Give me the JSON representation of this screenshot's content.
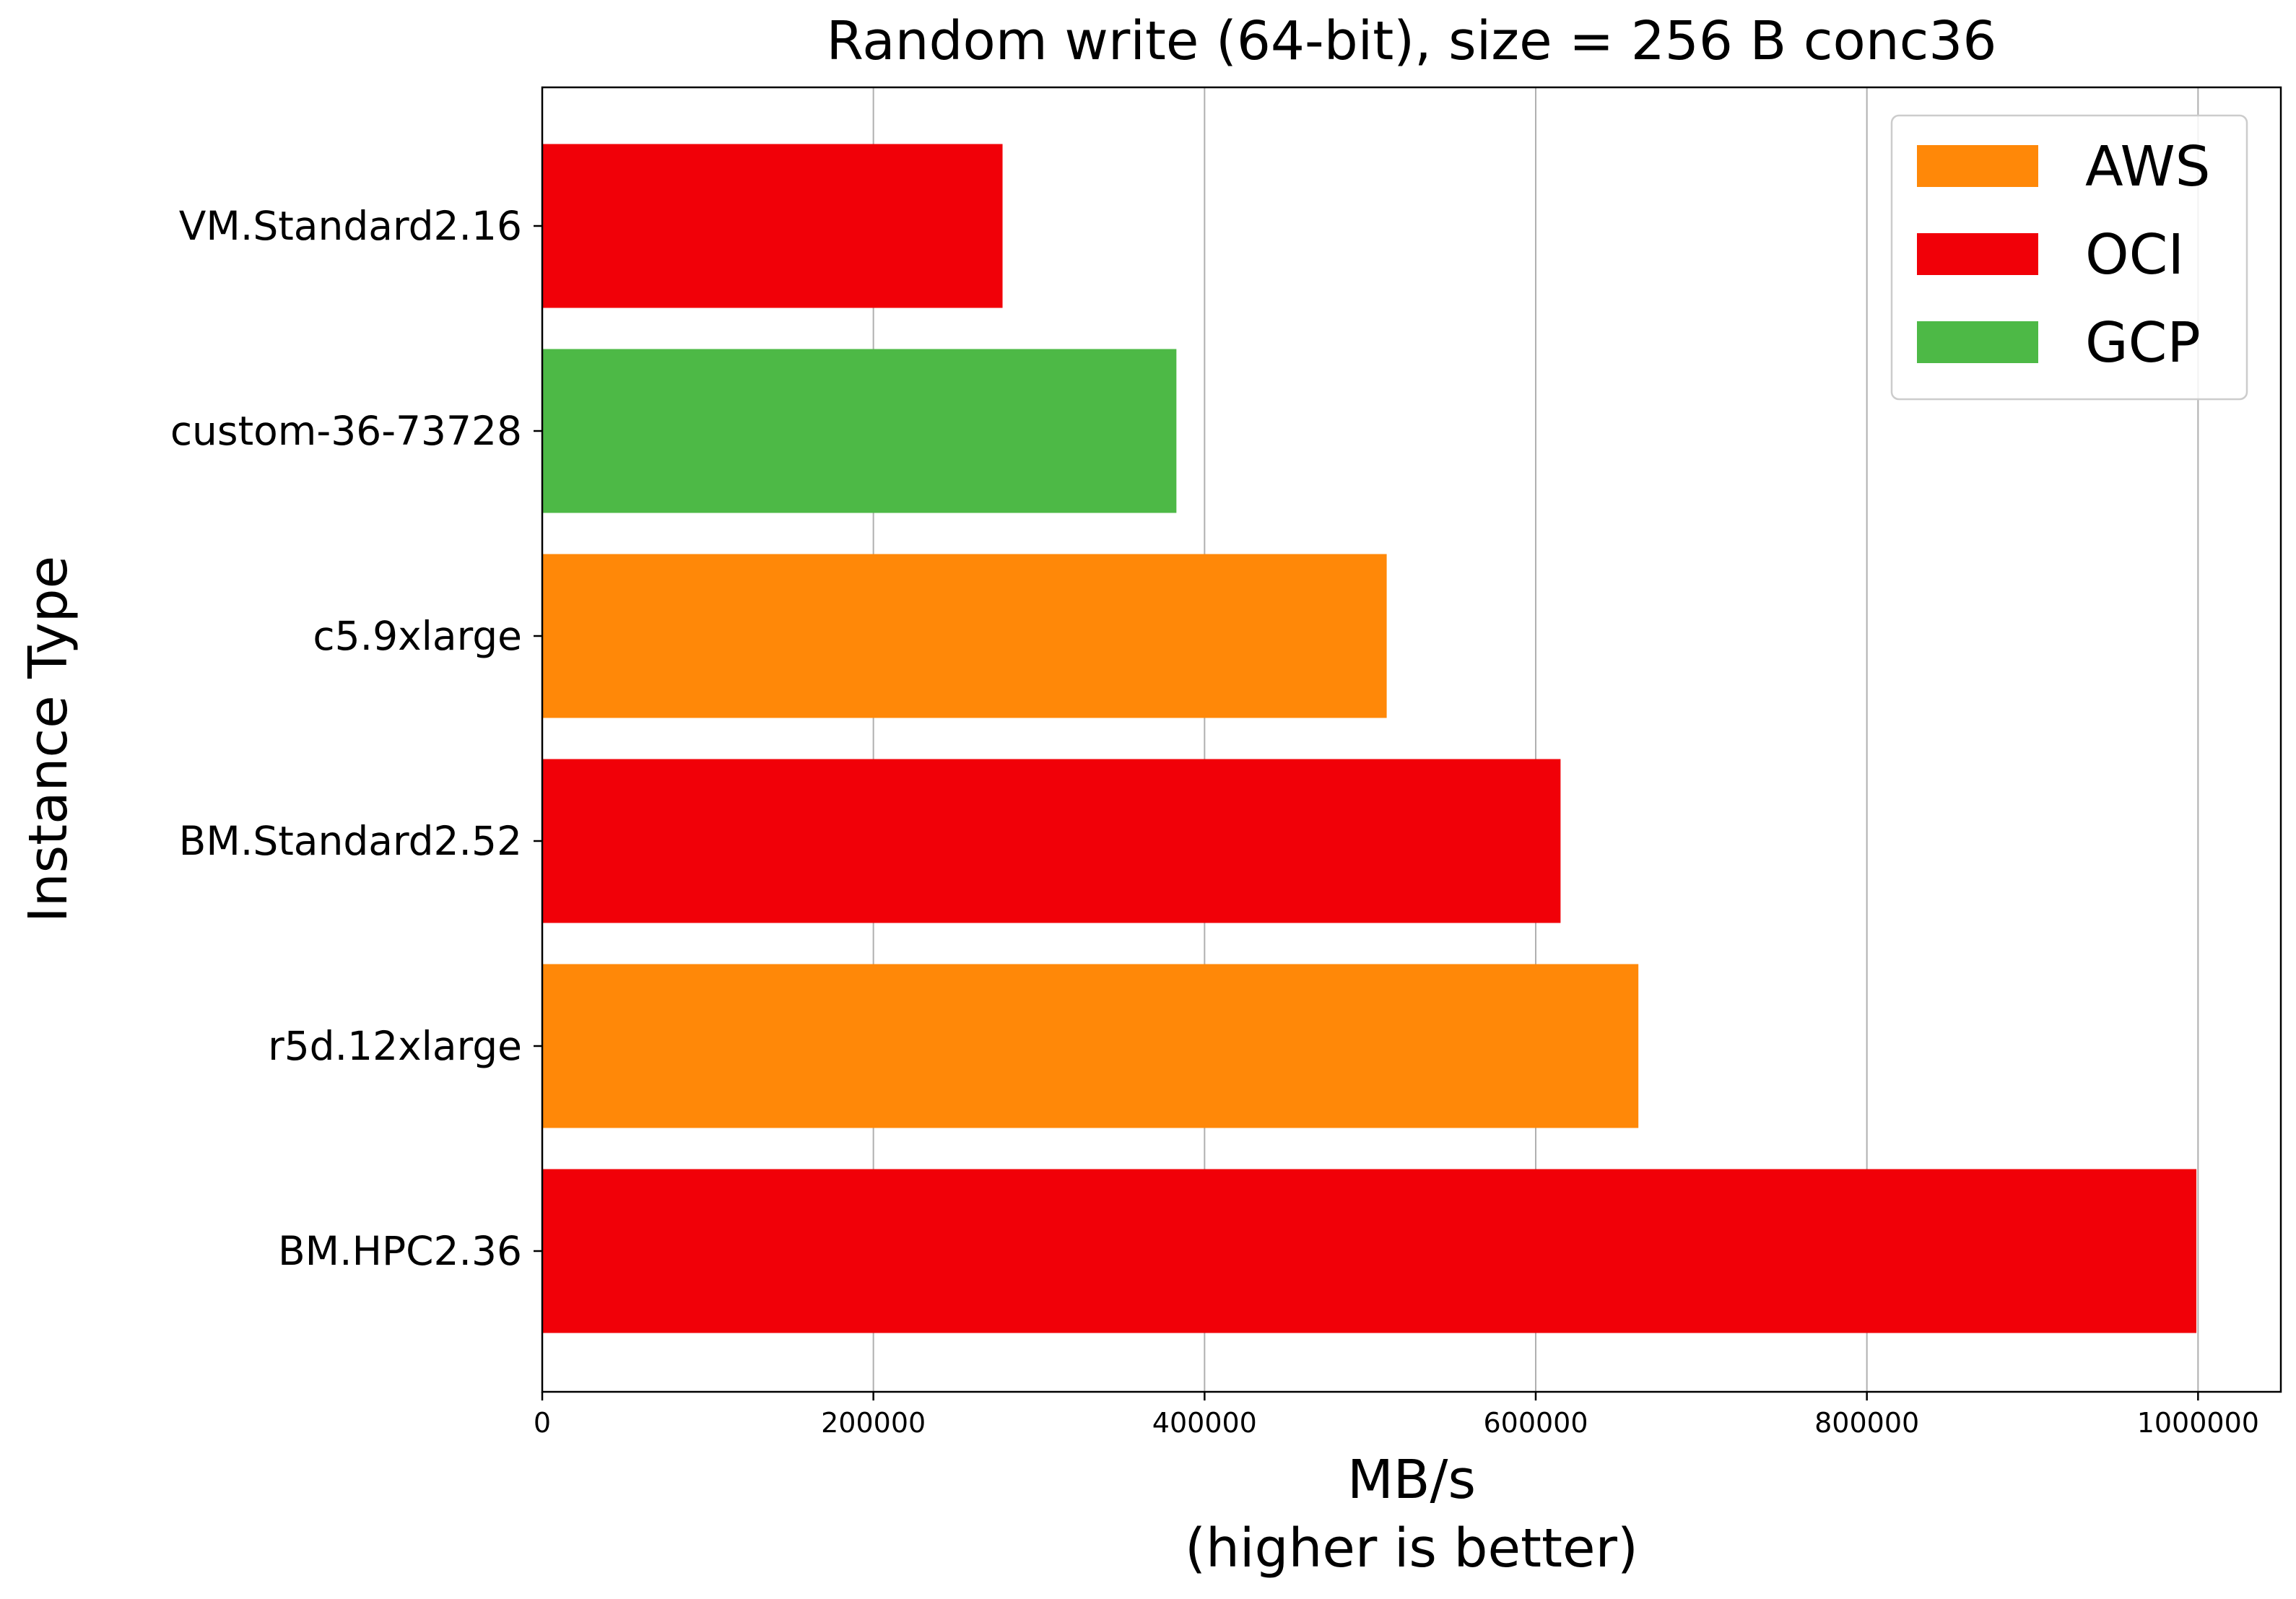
{
  "chart_data": {
    "type": "bar",
    "orientation": "horizontal",
    "title": "Random write (64-bit), size = 256 B conc36",
    "xlabel": "MB/s",
    "xlabel_sub": "(higher is better)",
    "ylabel": "Instance Type",
    "xlim": [
      0,
      1050000
    ],
    "xticks": [
      0,
      200000,
      400000,
      600000,
      800000,
      1000000
    ],
    "xtick_labels": [
      "0",
      "200000",
      "400000",
      "600000",
      "800000",
      "1000000"
    ],
    "grid": "vertical",
    "legend_position": "top-right",
    "categories": [
      "VM.Standard2.16",
      "custom-36-73728",
      "c5.9xlarge",
      "BM.Standard2.52",
      "r5d.12xlarge",
      "BM.HPC2.36"
    ],
    "values": [
      278000,
      383000,
      510000,
      615000,
      662000,
      999000
    ],
    "providers": [
      "OCI",
      "GCP",
      "AWS",
      "OCI",
      "AWS",
      "OCI"
    ],
    "legend": [
      {
        "name": "AWS",
        "color": "#ff8808"
      },
      {
        "name": "OCI",
        "color": "#f10008"
      },
      {
        "name": "GCP",
        "color": "#4db946"
      }
    ]
  }
}
